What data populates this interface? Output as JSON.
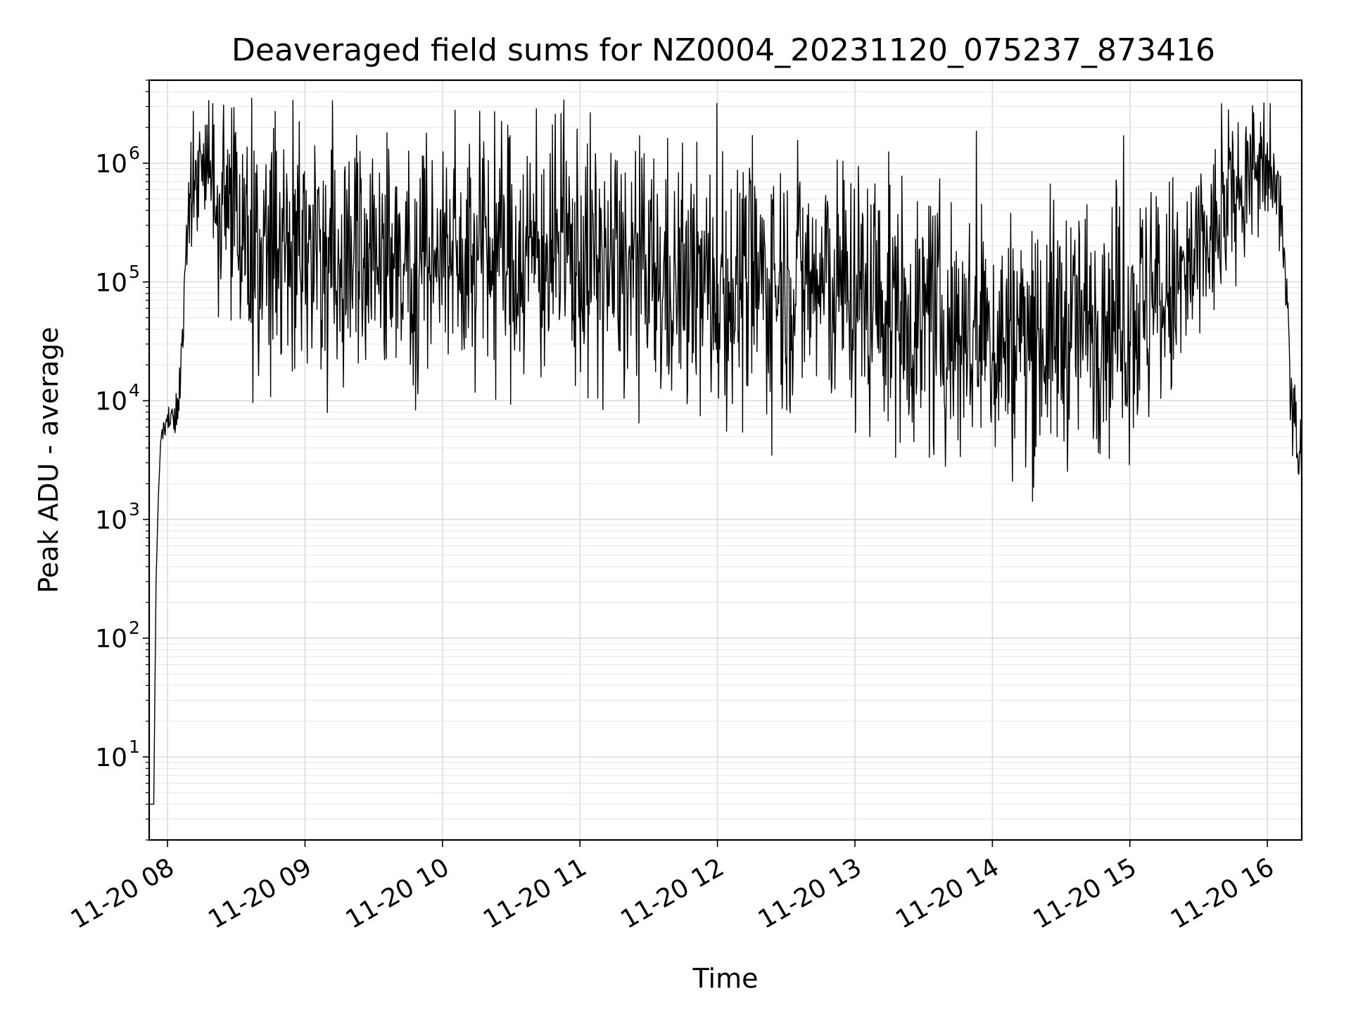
{
  "chart_data": {
    "type": "line",
    "title": "Deaveraged field sums for NZ0004_20231120_075237_873416",
    "xlabel": "Time",
    "ylabel": "Peak ADU - average",
    "x_scale": "time",
    "y_scale": "log",
    "xlim": [
      "2023-11-20 07:52",
      "2023-11-20 16:15"
    ],
    "ylim": [
      2,
      5000000
    ],
    "grid": true,
    "line_color": "#000000",
    "x_ticks": [
      "11-20 08",
      "11-20 09",
      "11-20 10",
      "11-20 11",
      "11-20 12",
      "11-20 13",
      "11-20 14",
      "11-20 15",
      "11-20 16"
    ],
    "y_ticks": [
      {
        "base": "10",
        "exp": "1"
      },
      {
        "base": "10",
        "exp": "2"
      },
      {
        "base": "10",
        "exp": "3"
      },
      {
        "base": "10",
        "exp": "4"
      },
      {
        "base": "10",
        "exp": "5"
      },
      {
        "base": "10",
        "exp": "6"
      }
    ],
    "series": [
      {
        "name": "",
        "x": [
          "07:52",
          "07:53",
          "07:54",
          "07:55",
          "07:56",
          "07:57",
          "07:58",
          "07:59",
          "08:00",
          "08:02",
          "08:04",
          "08:06",
          "08:08",
          "08:10",
          "08:12",
          "08:15",
          "08:18",
          "08:21",
          "08:25",
          "08:30",
          "08:35",
          "08:40",
          "08:45",
          "08:50",
          "09:00",
          "09:10",
          "09:20",
          "09:30",
          "09:40",
          "09:50",
          "10:00",
          "10:10",
          "10:20",
          "10:30",
          "10:40",
          "10:50",
          "11:00",
          "11:10",
          "11:20",
          "11:30",
          "11:40",
          "11:50",
          "12:00",
          "12:10",
          "12:20",
          "12:30",
          "12:40",
          "12:50",
          "13:00",
          "13:10",
          "13:20",
          "13:30",
          "13:40",
          "13:50",
          "14:00",
          "14:10",
          "14:20",
          "14:30",
          "14:40",
          "14:50",
          "15:00",
          "15:10",
          "15:20",
          "15:30",
          "15:40",
          "15:45",
          "15:50",
          "15:55",
          "16:00",
          "16:03",
          "16:06",
          "16:08",
          "16:10",
          "16:12",
          "16:14",
          "16:15"
        ],
        "y": [
          4,
          4,
          4,
          300,
          1500,
          4500,
          6000,
          6000,
          6500,
          7000,
          8000,
          20000,
          100000,
          500000,
          900000,
          1000000,
          800000,
          500000,
          350000,
          300000,
          250000,
          200000,
          180000,
          170000,
          160000,
          165000,
          170000,
          175000,
          170000,
          165000,
          165000,
          168000,
          170000,
          172000,
          175000,
          170000,
          160000,
          140000,
          120000,
          105000,
          95000,
          92000,
          90000,
          92000,
          95000,
          100000,
          95000,
          90000,
          80000,
          70000,
          55000,
          45000,
          40000,
          35000,
          32000,
          32000,
          35000,
          40000,
          45000,
          50000,
          55000,
          60000,
          80000,
          150000,
          300000,
          500000,
          700000,
          900000,
          800000,
          700000,
          400000,
          100000,
          10000,
          5000,
          6000,
          3000
        ],
        "noise": [
          0,
          0,
          0,
          0,
          0,
          0,
          0.05,
          0.05,
          0.08,
          0.08,
          0.1,
          0.2,
          0.3,
          0.28,
          0.25,
          0.25,
          0.35,
          0.4,
          0.45,
          0.55,
          0.55,
          0.55,
          0.55,
          0.55,
          0.55,
          0.55,
          0.55,
          0.55,
          0.55,
          0.55,
          0.55,
          0.55,
          0.55,
          0.55,
          0.55,
          0.55,
          0.55,
          0.55,
          0.55,
          0.55,
          0.55,
          0.55,
          0.55,
          0.55,
          0.55,
          0.55,
          0.55,
          0.55,
          0.55,
          0.55,
          0.55,
          0.55,
          0.55,
          0.55,
          0.55,
          0.55,
          0.55,
          0.55,
          0.55,
          0.55,
          0.55,
          0.55,
          0.5,
          0.45,
          0.35,
          0.3,
          0.3,
          0.3,
          0.3,
          0.25,
          0.3,
          0.3,
          0.3,
          0.3,
          0.3,
          0.2
        ]
      }
    ]
  }
}
